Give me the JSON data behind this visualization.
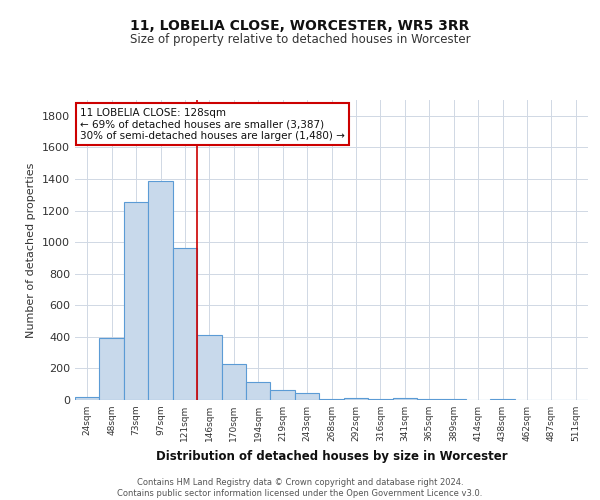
{
  "title": "11, LOBELIA CLOSE, WORCESTER, WR5 3RR",
  "subtitle": "Size of property relative to detached houses in Worcester",
  "xlabel": "Distribution of detached houses by size in Worcester",
  "ylabel": "Number of detached properties",
  "categories": [
    "24sqm",
    "48sqm",
    "73sqm",
    "97sqm",
    "121sqm",
    "146sqm",
    "170sqm",
    "194sqm",
    "219sqm",
    "243sqm",
    "268sqm",
    "292sqm",
    "316sqm",
    "341sqm",
    "365sqm",
    "389sqm",
    "414sqm",
    "438sqm",
    "462sqm",
    "487sqm",
    "511sqm"
  ],
  "values": [
    20,
    390,
    1255,
    1390,
    960,
    410,
    225,
    115,
    65,
    45,
    5,
    15,
    5,
    10,
    5,
    5,
    0,
    5,
    0,
    0,
    0
  ],
  "bar_color": "#c8d9eb",
  "bar_edge_color": "#5b9bd5",
  "grid_color": "#d0d8e4",
  "background_color": "#ffffff",
  "annotation_line1": "11 LOBELIA CLOSE: 128sqm",
  "annotation_line2": "← 69% of detached houses are smaller (3,387)",
  "annotation_line3": "30% of semi-detached houses are larger (1,480) →",
  "annotation_box_color": "#ffffff",
  "annotation_box_edge_color": "#cc0000",
  "red_line_x": 4.5,
  "red_line_color": "#cc0000",
  "footer": "Contains HM Land Registry data © Crown copyright and database right 2024.\nContains public sector information licensed under the Open Government Licence v3.0.",
  "ylim": [
    0,
    1900
  ],
  "yticks": [
    0,
    200,
    400,
    600,
    800,
    1000,
    1200,
    1400,
    1600,
    1800
  ]
}
